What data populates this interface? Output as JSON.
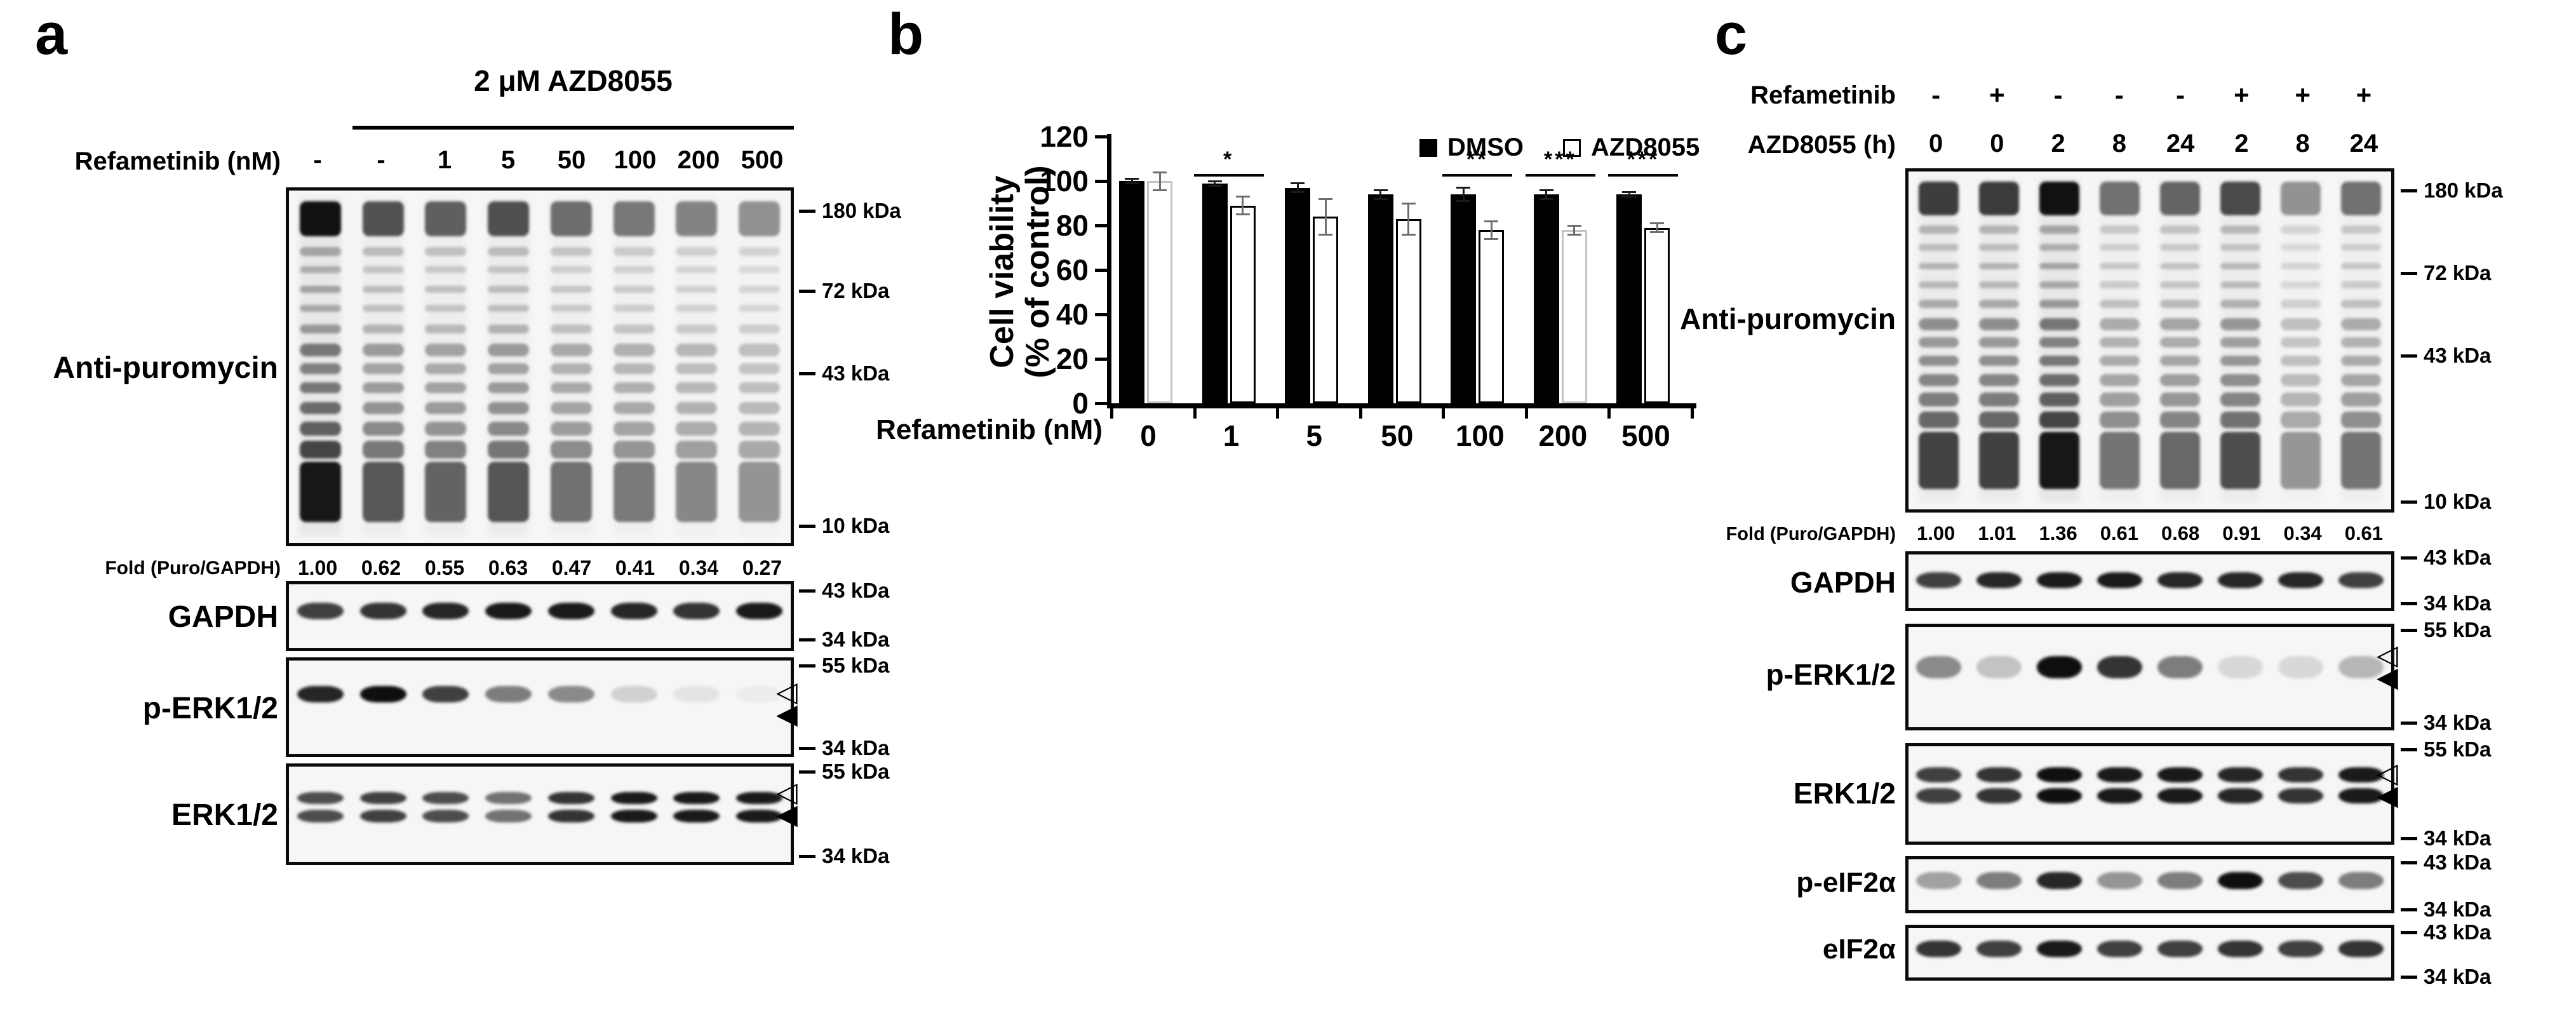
{
  "colors": {
    "background": "#ffffff",
    "ink": "#000000"
  },
  "panel_a": {
    "label": "a",
    "treatment_header": "2 μM AZD8055",
    "dose_row_label": "Refametinib (nM)",
    "doses": [
      "-",
      "-",
      "1",
      "5",
      "50",
      "100",
      "200",
      "500"
    ],
    "blot_label": "Anti-puromycin",
    "fold_label": "Fold (Puro/GAPDH)",
    "fold_values": [
      "1.00",
      "0.62",
      "0.55",
      "0.63",
      "0.47",
      "0.41",
      "0.34",
      "0.27"
    ],
    "gapdh_label": "GAPDH",
    "p_erk_label": "p-ERK1/2",
    "erk_label": "ERK1/2",
    "marker_labels": {
      "antipuromycin": [
        "180 kDa",
        "72 kDa",
        "43 kDa",
        "10 kDa"
      ],
      "gapdh": [
        "43 kDa",
        "34 kDa"
      ],
      "p_erk": [
        "55 kDa",
        "34 kDa"
      ],
      "erk": [
        "55 kDa",
        "34 kDa"
      ]
    },
    "arrowhead_icons": [
      "open-left-arrowhead-icon",
      "filled-left-arrowhead-icon"
    ],
    "lane_intensities": {
      "antipuromycin": [
        1.0,
        0.62,
        0.55,
        0.63,
        0.47,
        0.41,
        0.34,
        0.27
      ],
      "gapdh": [
        0.8,
        0.85,
        0.9,
        0.95,
        0.95,
        0.9,
        0.85,
        0.95
      ],
      "p_erk": [
        0.9,
        1.0,
        0.8,
        0.55,
        0.5,
        0.18,
        0.08,
        0.03
      ],
      "erk": [
        0.75,
        0.8,
        0.75,
        0.6,
        0.85,
        0.95,
        0.95,
        0.95
      ]
    }
  },
  "panel_b": {
    "label": "b"
  },
  "chart_data": {
    "type": "bar",
    "categories": [
      "0",
      "1",
      "5",
      "50",
      "100",
      "200",
      "500"
    ],
    "series": [
      {
        "name": "DMSO",
        "fill": "#000000",
        "values": [
          100,
          99,
          97,
          94,
          94,
          94,
          94
        ],
        "errors": [
          1,
          1,
          2,
          2,
          3,
          2,
          1
        ]
      },
      {
        "name": "AZD8055",
        "fill": "#ffffff",
        "values": [
          100,
          89,
          84,
          83,
          78,
          78,
          79
        ],
        "errors": [
          4,
          4,
          8,
          7,
          4,
          2,
          2
        ]
      }
    ],
    "ylabel_line1": "Cell viability",
    "ylabel_line2": "(% of control)",
    "xlabel": "Refametinib (nM)",
    "yticks": [
      0,
      20,
      40,
      60,
      80,
      100,
      120
    ],
    "ylim": [
      0,
      120
    ],
    "grid": false,
    "legend_position": "top-right",
    "significance": [
      {
        "category": "1",
        "symbol": "*"
      },
      {
        "category": "100",
        "symbol": "**"
      },
      {
        "category": "200",
        "symbol": "***"
      },
      {
        "category": "500",
        "symbol": "***"
      }
    ]
  },
  "panel_c": {
    "label": "c",
    "refametinib_row_label": "Refametinib",
    "refametinib_values": [
      "-",
      "+",
      "-",
      "-",
      "-",
      "+",
      "+",
      "+"
    ],
    "azd_row_label": "AZD8055 (h)",
    "azd_values": [
      "0",
      "0",
      "2",
      "8",
      "24",
      "2",
      "8",
      "24"
    ],
    "blot_label": "Anti-puromycin",
    "fold_label": "Fold (Puro/GAPDH)",
    "fold_values": [
      "1.00",
      "1.01",
      "1.36",
      "0.61",
      "0.68",
      "0.91",
      "0.34",
      "0.61"
    ],
    "gapdh_label": "GAPDH",
    "p_erk_label": "p-ERK1/2",
    "erk_label": "ERK1/2",
    "p_eif2a_label": "p-eIF2α",
    "eif2a_label": "eIF2α",
    "marker_labels": {
      "antipuromycin": [
        "180 kDa",
        "72 kDa",
        "43 kDa",
        "10 kDa"
      ],
      "gapdh": [
        "43 kDa",
        "34 kDa"
      ],
      "p_erk": [
        "55 kDa",
        "34 kDa"
      ],
      "erk": [
        "55 kDa",
        "34 kDa"
      ],
      "p_eif2a": [
        "43 kDa",
        "34 kDa"
      ],
      "eif2a": [
        "43 kDa",
        "34 kDa"
      ]
    },
    "arrowhead_icons": [
      "open-left-arrowhead-icon",
      "filled-left-arrowhead-icon"
    ],
    "lane_intensities": {
      "antipuromycin": [
        0.74,
        0.75,
        1.0,
        0.45,
        0.52,
        0.67,
        0.26,
        0.45
      ],
      "gapdh": [
        0.8,
        0.9,
        0.95,
        0.95,
        0.9,
        0.9,
        0.9,
        0.8
      ],
      "p_erk": [
        0.5,
        0.25,
        1.0,
        0.85,
        0.55,
        0.15,
        0.15,
        0.3
      ],
      "erk": [
        0.8,
        0.85,
        1.0,
        0.95,
        0.95,
        0.9,
        0.85,
        0.95
      ],
      "p_eif2a": [
        0.4,
        0.55,
        0.9,
        0.45,
        0.55,
        1.0,
        0.75,
        0.55
      ],
      "eif2a": [
        0.85,
        0.8,
        0.95,
        0.8,
        0.8,
        0.85,
        0.8,
        0.85
      ]
    }
  }
}
